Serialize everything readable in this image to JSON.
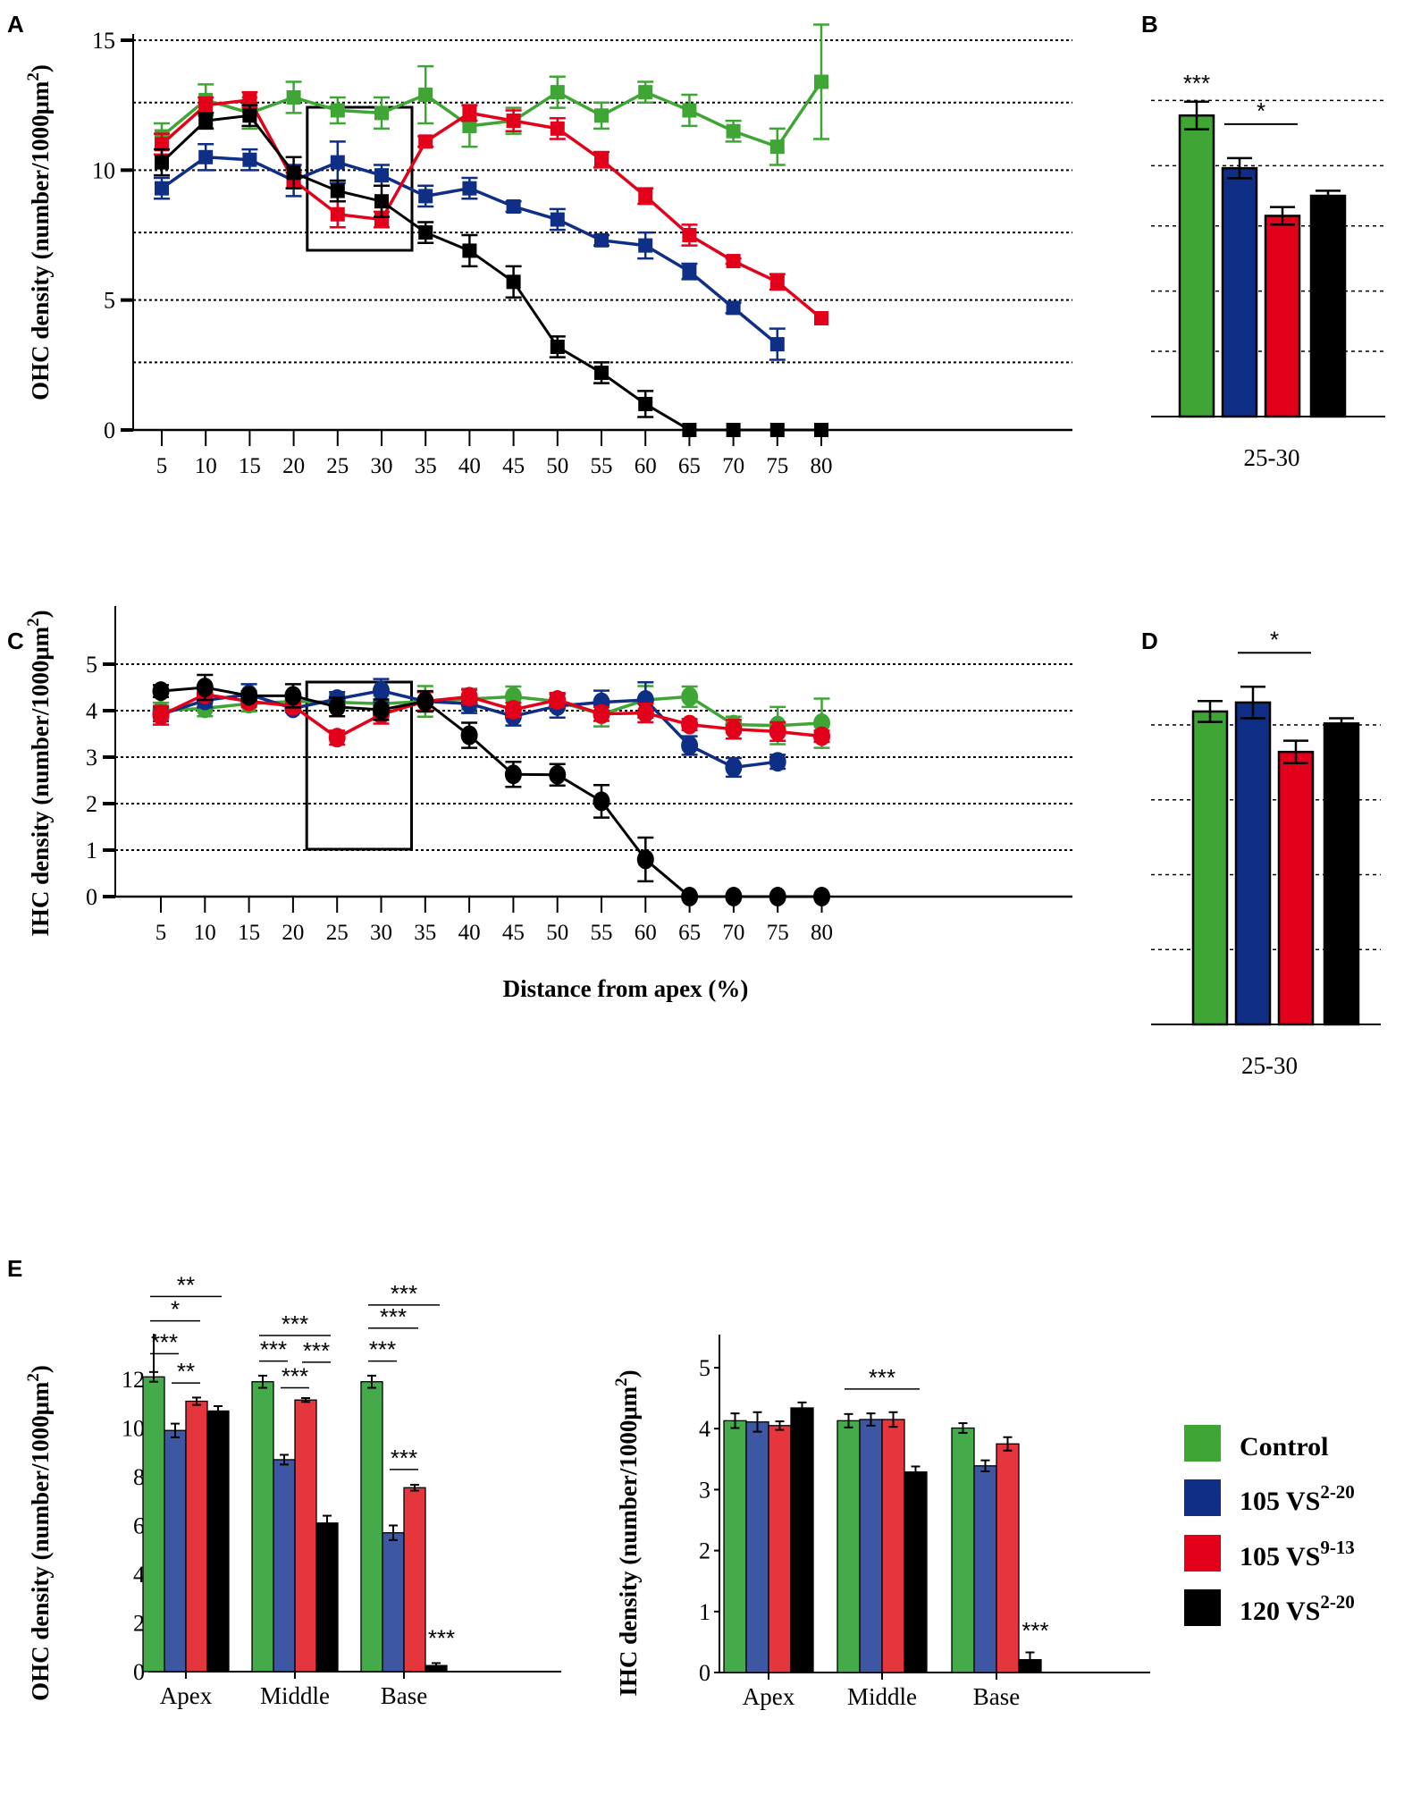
{
  "figure": {
    "panel_letters": [
      "A",
      "B",
      "C",
      "D",
      "E"
    ]
  },
  "colors": {
    "control": "#3fa535",
    "vs105_2_20": "#0f2f86",
    "vs105_9_13": "#e2001a",
    "vs120_2_20": "#000000",
    "control_bar_E": "#45ab4a",
    "blue_bar_E": "#3e57a3",
    "red_bar_E": "#e5363d"
  },
  "legend": {
    "items": [
      {
        "label": "Control",
        "sup": "",
        "key": "control"
      },
      {
        "label": "105 VS",
        "sup": "2-20",
        "key": "vs105_2_20"
      },
      {
        "label": "105 VS",
        "sup": "9-13",
        "key": "vs105_9_13"
      },
      {
        "label": "120 VS",
        "sup": "2-20",
        "key": "vs120_2_20"
      }
    ]
  },
  "chart_data": [
    {
      "panel": "A",
      "type": "line",
      "marker": "square",
      "ylabel": "OHC density (number/1000μm2)",
      "ylabel_main": "OHC density (number/1000μm",
      "ylabel_sup": "2",
      "ylabel_end": ")",
      "xlabel": "",
      "ylim": [
        0,
        15
      ],
      "yticks": [
        0,
        5,
        10,
        15
      ],
      "ytick_labels": [
        "0",
        "5",
        "10",
        "15"
      ],
      "gridlines": [
        2.6,
        5,
        7.6,
        10,
        12.6,
        15
      ],
      "grid": "dotted",
      "x": [
        5,
        10,
        15,
        20,
        25,
        30,
        35,
        40,
        45,
        50,
        55,
        60,
        65,
        70,
        75,
        80
      ],
      "xtick_labels": [
        "5",
        "10",
        "15",
        "20",
        "25",
        "30",
        "35",
        "40",
        "45",
        "50",
        "55",
        "60",
        "65",
        "70",
        "75",
        "80"
      ],
      "highlight_box": [
        25,
        30
      ],
      "series": [
        {
          "name": "Control",
          "key": "control",
          "values": [
            11.3,
            12.7,
            12.2,
            12.8,
            12.3,
            12.2,
            12.9,
            11.7,
            11.9,
            13.0,
            12.1,
            13.0,
            12.3,
            11.5,
            10.9,
            13.4
          ],
          "err": [
            0.5,
            0.6,
            0.6,
            0.6,
            0.5,
            0.6,
            1.1,
            0.8,
            0.5,
            0.6,
            0.5,
            0.4,
            0.6,
            0.4,
            0.7,
            2.2
          ]
        },
        {
          "name": "105 VS2-20",
          "key": "vs105_2_20",
          "values": [
            9.3,
            10.5,
            10.4,
            9.6,
            10.3,
            9.8,
            9.0,
            9.3,
            8.6,
            8.1,
            7.3,
            7.1,
            6.1,
            4.7,
            3.3,
            null
          ],
          "err": [
            0.4,
            0.5,
            0.4,
            0.6,
            0.8,
            0.4,
            0.4,
            0.4,
            0.2,
            0.4,
            0.2,
            0.5,
            0.3,
            0.2,
            0.6,
            null
          ]
        },
        {
          "name": "105 VS9-13",
          "key": "vs105_9_13",
          "values": [
            11.0,
            12.5,
            12.7,
            9.6,
            8.3,
            8.1,
            11.1,
            12.2,
            11.9,
            11.6,
            10.4,
            9.0,
            7.5,
            6.5,
            5.7,
            4.3
          ],
          "err": [
            0.4,
            0.3,
            0.3,
            0.3,
            0.5,
            0.3,
            0.2,
            0.3,
            0.4,
            0.4,
            0.3,
            0.3,
            0.4,
            0.1,
            0.3,
            0.0
          ]
        },
        {
          "name": "120 VS2-20",
          "key": "vs120_2_20",
          "values": [
            10.3,
            11.9,
            12.1,
            9.9,
            9.2,
            8.8,
            7.6,
            6.9,
            5.7,
            3.2,
            2.2,
            1.0,
            0.0,
            0.0,
            0.0,
            0.0
          ],
          "err": [
            0.5,
            0.3,
            0.4,
            0.6,
            0.4,
            0.6,
            0.4,
            0.6,
            0.6,
            0.4,
            0.4,
            0.5,
            0.0,
            0.0,
            0.0,
            0.0
          ]
        }
      ]
    },
    {
      "panel": "B",
      "type": "bar",
      "categories": [
        "25-30"
      ],
      "category_label": "25-30",
      "ylim": [
        0,
        15
      ],
      "gridlines": [
        2.6,
        5,
        7.6,
        10,
        12.6
      ],
      "series": [
        {
          "name": "Control",
          "key": "control",
          "value": 12.0,
          "err": 0.55
        },
        {
          "name": "105 VS2-20",
          "key": "vs105_2_20",
          "value": 9.9,
          "err": 0.4
        },
        {
          "name": "105 VS9-13",
          "key": "vs105_9_13",
          "value": 8.0,
          "err": 0.35
        },
        {
          "name": "120 VS2-20",
          "key": "vs120_2_20",
          "value": 8.8,
          "err": 0.2
        }
      ],
      "annotations": [
        {
          "text": "***",
          "over": [
            0,
            0
          ],
          "line": false
        },
        {
          "text": "*",
          "over": [
            1,
            2
          ],
          "line": true
        }
      ]
    },
    {
      "panel": "C",
      "type": "line",
      "marker": "circle",
      "ylabel": "IHC density (number/1000μm2)",
      "ylabel_main": "IHC density (number/1000μm",
      "ylabel_sup": "2",
      "ylabel_end": ")",
      "xlabel": "Distance from apex (%)",
      "ylim": [
        0,
        5.5
      ],
      "yticks": [
        0,
        1,
        2,
        3,
        4,
        5
      ],
      "ytick_labels": [
        "0",
        "1",
        "2",
        "3",
        "4",
        "5"
      ],
      "gridlines": [
        1,
        2,
        3,
        4,
        5
      ],
      "grid": "dotted",
      "x": [
        5,
        10,
        15,
        20,
        25,
        30,
        35,
        40,
        45,
        50,
        55,
        60,
        65,
        70,
        75,
        80
      ],
      "xtick_labels": [
        "5",
        "10",
        "15",
        "20",
        "25",
        "30",
        "35",
        "40",
        "45",
        "50",
        "55",
        "60",
        "65",
        "70",
        "75",
        "80"
      ],
      "highlight_box": [
        25,
        30
      ],
      "series": [
        {
          "name": "Control",
          "key": "control",
          "values": [
            4.0,
            4.05,
            4.15,
            4.2,
            4.18,
            4.15,
            4.2,
            4.25,
            4.3,
            4.2,
            3.92,
            4.23,
            4.3,
            3.7,
            3.68,
            3.73
          ],
          "err": [
            0.17,
            0.17,
            0.17,
            0.17,
            0.17,
            0.17,
            0.33,
            0.22,
            0.22,
            0.17,
            0.26,
            0.3,
            0.22,
            0.17,
            0.4,
            0.53
          ]
        },
        {
          "name": "105 VS2-20",
          "key": "vs105_2_20",
          "values": [
            3.92,
            4.22,
            4.35,
            4.05,
            4.25,
            4.43,
            4.2,
            4.15,
            3.88,
            4.1,
            4.18,
            4.23,
            3.25,
            2.78,
            2.9,
            null
          ],
          "err": [
            0.15,
            0.15,
            0.22,
            0.08,
            0.15,
            0.25,
            0.2,
            0.2,
            0.2,
            0.25,
            0.25,
            0.38,
            0.2,
            0.2,
            0.15,
            null
          ]
        },
        {
          "name": "105 VS9-13",
          "key": "vs105_9_13",
          "values": [
            3.9,
            4.35,
            4.2,
            4.1,
            3.42,
            3.92,
            4.2,
            4.3,
            4.02,
            4.23,
            3.93,
            3.95,
            3.7,
            3.6,
            3.55,
            3.45
          ],
          "err": [
            0.2,
            0.12,
            0.12,
            0.12,
            0.15,
            0.2,
            0.2,
            0.15,
            0.15,
            0.15,
            0.15,
            0.2,
            0.12,
            0.2,
            0.2,
            0.12
          ]
        },
        {
          "name": "120 VS2-20",
          "key": "vs120_2_20",
          "values": [
            4.42,
            4.5,
            4.32,
            4.32,
            4.08,
            4.02,
            4.2,
            3.47,
            2.63,
            2.62,
            2.05,
            0.8,
            0.0,
            0.0,
            0.0,
            0.0
          ],
          "err": [
            0.13,
            0.27,
            0.1,
            0.25,
            0.2,
            0.22,
            0.22,
            0.27,
            0.27,
            0.23,
            0.35,
            0.47,
            0.0,
            0.0,
            0.0,
            0.0
          ]
        }
      ]
    },
    {
      "panel": "D",
      "type": "bar",
      "categories": [
        "25-30"
      ],
      "category_label": "25-30",
      "ylim": [
        0,
        5.5
      ],
      "gridlines": [
        1,
        2,
        3,
        4
      ],
      "series": [
        {
          "name": "Control",
          "key": "control",
          "value": 4.18,
          "err": 0.14
        },
        {
          "name": "105 VS2-20",
          "key": "vs105_2_20",
          "value": 4.3,
          "err": 0.21
        },
        {
          "name": "105 VS9-13",
          "key": "vs105_9_13",
          "value": 3.64,
          "err": 0.15
        },
        {
          "name": "120 VS2-20",
          "key": "vs120_2_20",
          "value": 4.02,
          "err": 0.07
        }
      ],
      "annotations": [
        {
          "text": "*",
          "over": [
            1,
            2
          ],
          "line": true
        }
      ]
    },
    {
      "panel": "E-left",
      "type": "bar",
      "ylabel_main": "OHC density (number/1000μm",
      "ylabel_sup": "2",
      "ylabel_end": ")",
      "categories": [
        "Apex",
        "Middle",
        "Base"
      ],
      "ylim": [
        0,
        14
      ],
      "yticks": [
        0,
        2,
        4,
        6,
        8,
        10,
        12
      ],
      "ytick_labels": [
        "0",
        "2",
        "4",
        "6",
        "8",
        "10",
        "12"
      ],
      "series": [
        {
          "name": "Control",
          "key": "control_bar_E",
          "values": [
            12.1,
            11.9,
            11.9
          ],
          "err": [
            0.2,
            0.25,
            0.25
          ]
        },
        {
          "name": "105 VS2-20",
          "key": "blue_bar_E",
          "values": [
            9.9,
            8.7,
            5.7
          ],
          "err": [
            0.28,
            0.2,
            0.3
          ]
        },
        {
          "name": "105 VS9-13",
          "key": "red_bar_E",
          "values": [
            11.1,
            11.15,
            7.55
          ],
          "err": [
            0.15,
            0.08,
            0.12
          ]
        },
        {
          "name": "120 VS2-20",
          "key": "vs120_2_20",
          "values": [
            10.7,
            6.1,
            0.25
          ],
          "err": [
            0.2,
            0.3,
            0.1
          ]
        }
      ],
      "annotations": [
        {
          "text": "**",
          "cat": 0,
          "from": 0,
          "to": 3,
          "level": 15.4
        },
        {
          "text": "*",
          "cat": 0,
          "from": 0,
          "to": 2,
          "level": 14.4
        },
        {
          "text": "***",
          "cat": 0,
          "from": 0,
          "to": 1,
          "level": 13.05
        },
        {
          "text": "**",
          "cat": 0,
          "from": 1,
          "to": 2,
          "level": 11.85
        },
        {
          "text": "***",
          "cat": 1,
          "from": 0,
          "to": 3,
          "level": 13.8
        },
        {
          "text": "***",
          "cat": 1,
          "from": 0,
          "to": 1,
          "level": 12.75
        },
        {
          "text": "***",
          "cat": 1,
          "from": 2,
          "to": 3,
          "level": 12.7
        },
        {
          "text": "***",
          "cat": 1,
          "from": 1,
          "to": 2,
          "level": 11.65
        },
        {
          "text": "***",
          "cat": 2,
          "from": 0,
          "to": 3,
          "level": 15.05
        },
        {
          "text": "***",
          "cat": 2,
          "from": 0,
          "to": 2,
          "level": 14.1
        },
        {
          "text": "***",
          "cat": 2,
          "from": 0,
          "to": 1,
          "level": 12.75
        },
        {
          "text": "***",
          "cat": 2,
          "from": 1,
          "to": 2,
          "level": 8.3
        },
        {
          "text": "***",
          "cat": 2,
          "from": 3,
          "to": 3,
          "level": 0.9,
          "noline": true
        }
      ]
    },
    {
      "panel": "E-right",
      "type": "bar",
      "ylabel_main": "IHC density (number/1000μm",
      "ylabel_sup": "2",
      "ylabel_end": ")",
      "categories": [
        "Apex",
        "Middle",
        "Base"
      ],
      "ylim": [
        0,
        5.5
      ],
      "yticks": [
        0,
        1,
        2,
        3,
        4,
        5
      ],
      "ytick_labels": [
        "0",
        "1",
        "2",
        "3",
        "4",
        "5"
      ],
      "series": [
        {
          "name": "Control",
          "key": "control_bar_E",
          "values": [
            4.13,
            4.13,
            4.01
          ],
          "err": [
            0.12,
            0.11,
            0.08
          ]
        },
        {
          "name": "105 VS2-20",
          "key": "blue_bar_E",
          "values": [
            4.11,
            4.15,
            3.39
          ],
          "err": [
            0.16,
            0.1,
            0.09
          ]
        },
        {
          "name": "105 VS9-13",
          "key": "red_bar_E",
          "values": [
            4.05,
            4.15,
            3.75
          ],
          "err": [
            0.07,
            0.12,
            0.11
          ]
        },
        {
          "name": "120 VS2-20",
          "key": "vs120_2_20",
          "values": [
            4.34,
            3.29,
            0.21
          ],
          "err": [
            0.09,
            0.09,
            0.12
          ]
        }
      ],
      "annotations": [
        {
          "text": "***",
          "cat": 1,
          "from": 0,
          "to": 3,
          "level": 4.65
        },
        {
          "text": "***",
          "cat": 2,
          "from": 3,
          "to": 3,
          "level": 0.5,
          "noline": true
        }
      ]
    }
  ]
}
